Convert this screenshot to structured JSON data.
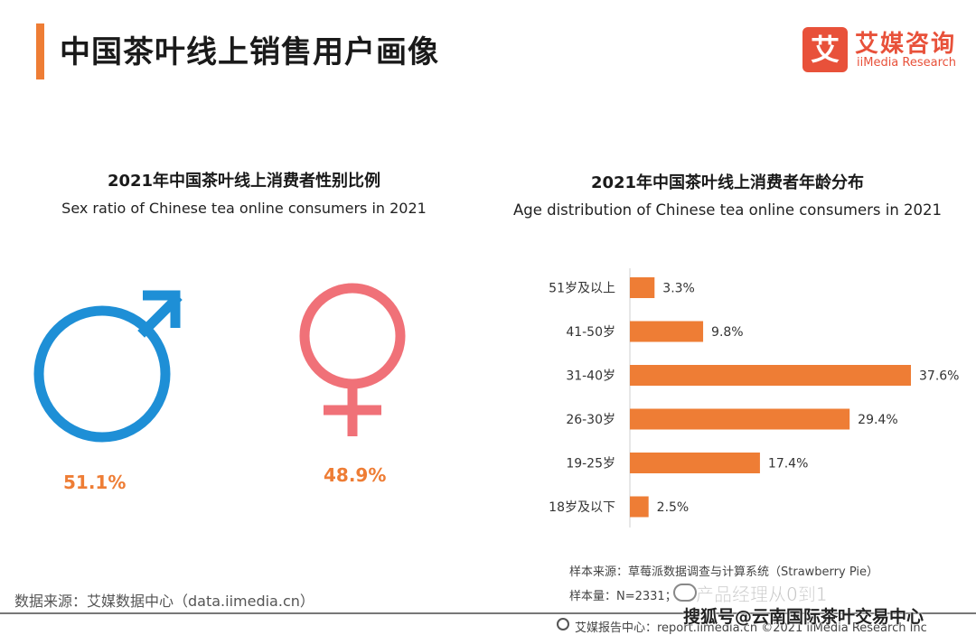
{
  "header": {
    "title": "中国茶叶线上销售用户画像",
    "logo_mark": "艾",
    "logo_cn": "艾媒咨询",
    "logo_en": "iiMedia Research"
  },
  "chart_data": [
    {
      "type": "pie",
      "title": "2021年中国茶叶线上消费者性别比例",
      "subtitle": "Sex ratio of Chinese tea online consumers in 2021",
      "categories": [
        "male",
        "female"
      ],
      "values": [
        51.1,
        48.9
      ],
      "value_labels": [
        "51.1%",
        "48.9%"
      ],
      "colors": [
        "#1e8fd6",
        "#f07178"
      ],
      "icons": [
        "male-symbol-icon",
        "female-symbol-icon"
      ]
    },
    {
      "type": "bar",
      "orientation": "horizontal",
      "title": "2021年中国茶叶线上消费者年龄分布",
      "subtitle": "Age distribution of Chinese  tea online consumers in 2021",
      "categories": [
        "51岁及以上",
        "41-50岁",
        "31-40岁",
        "26-30岁",
        "19-25岁",
        "18岁及以下"
      ],
      "values": [
        3.3,
        9.8,
        37.6,
        29.4,
        17.4,
        2.5
      ],
      "value_labels": [
        "3.3%",
        "9.8%",
        "37.6%",
        "29.4%",
        "17.4%",
        "2.5%"
      ],
      "color": "#ee7d35",
      "xlim": [
        0,
        37.6
      ],
      "grid": false,
      "legend": "none"
    }
  ],
  "footer": {
    "source_left": "数据来源：艾媒数据中心（data.iimedia.cn）",
    "sample_source": "样本来源：草莓派数据调查与计算系统（Strawberry Pie）",
    "sample_size": "样本量：N=2331；",
    "watermark_top": "产品经理从0到1",
    "report_center": "艾媒报告中心：report.iimedia.cn   ©2021  iiMedia Research  Inc",
    "watermark_bottom": "搜狐号@云南国际茶叶交易中心"
  }
}
